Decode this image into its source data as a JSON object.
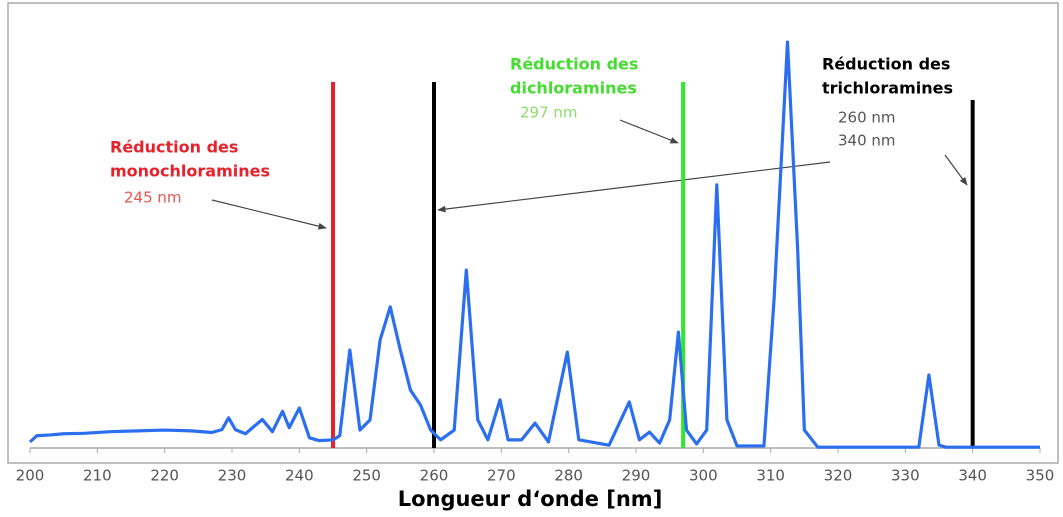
{
  "chart_data": {
    "type": "line",
    "xlabel": "Longueur d‘onde [nm]",
    "x": [
      200,
      201,
      203,
      205,
      208,
      212,
      216,
      220,
      224,
      227,
      228.5,
      229.5,
      230.5,
      232,
      234.5,
      236,
      237.5,
      238.5,
      240,
      241.5,
      243,
      245,
      246,
      247.5,
      249,
      250.5,
      252,
      253.5,
      255,
      256.5,
      258,
      259.5,
      261,
      263,
      264.8,
      266.5,
      268,
      269.8,
      271,
      273,
      275,
      277,
      279.8,
      281.5,
      286,
      289,
      290.5,
      292,
      293.5,
      295,
      296.3,
      297.5,
      299,
      300.5,
      302,
      303.5,
      305,
      309,
      310.5,
      312.5,
      314,
      315,
      317,
      332,
      333.5,
      335,
      336,
      350
    ],
    "values": [
      1.5,
      3,
      3.2,
      3.5,
      3.6,
      4,
      4.2,
      4.4,
      4.2,
      3.8,
      4.5,
      7.4,
      4.5,
      3.5,
      7,
      4,
      9,
      5,
      9.8,
      2.5,
      1.8,
      2,
      3,
      24,
      4.4,
      6.9,
      26.5,
      34.6,
      24,
      14.2,
      10.5,
      4.4,
      2,
      4.4,
      43.6,
      6.9,
      2,
      11.8,
      2,
      2,
      6.1,
      1.5,
      23.5,
      2,
      0.7,
      11.3,
      2,
      3.9,
      1.2,
      6.9,
      28.4,
      4.4,
      1,
      4.4,
      64.5,
      6.9,
      0.5,
      0.5,
      36.3,
      99.5,
      49,
      4.4,
      0.2,
      0.2,
      17.9,
      0.7,
      0.2,
      0.2
    ],
    "color": "#2b6ff0",
    "xlim": [
      200,
      350
    ],
    "ylim": [
      0,
      100
    ],
    "xticks": [
      200,
      210,
      220,
      230,
      240,
      250,
      260,
      270,
      280,
      290,
      300,
      310,
      320,
      330,
      340,
      350
    ],
    "annotations": [
      {
        "title": [
          "Réduction des",
          "monochloramines"
        ],
        "color": "#e8212a",
        "label_color": "#e8554f",
        "markers": [
          {
            "x": 245,
            "label": "245 nm",
            "color": "#e8212a"
          }
        ]
      },
      {
        "title": [
          "Réduction des",
          "dichloramines"
        ],
        "color": "#45dd30",
        "label_color": "#8edb6c",
        "markers": [
          {
            "x": 297,
            "label": "297 nm",
            "color": "#2ee82a"
          }
        ]
      },
      {
        "title": [
          "Réduction des",
          "trichloramines"
        ],
        "color": "#000000",
        "label_color": "#555555",
        "markers": [
          {
            "x": 260,
            "label": "260 nm",
            "color": "#000000"
          },
          {
            "x": 340,
            "label": "340 nm",
            "color": "#000000"
          }
        ]
      }
    ]
  }
}
